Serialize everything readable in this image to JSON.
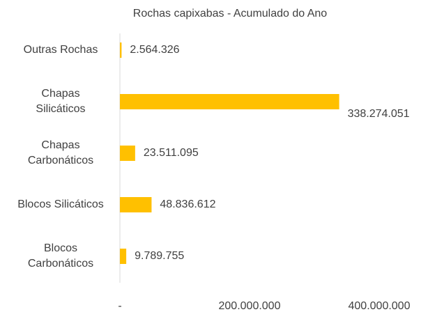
{
  "chart_data": {
    "type": "barh",
    "title": "Rochas capixabas - Acumulado do Ano",
    "categories": [
      "Outras Rochas",
      "Chapas\nSilicáticos",
      "Chapas\nCarbonáticos",
      "Blocos Silicáticos",
      "Blocos\nCarbonáticos"
    ],
    "values": [
      2564326,
      338274051,
      23511095,
      48836612,
      9789755
    ],
    "value_labels": [
      "2.564.326",
      "338.274.051",
      "23.511.095",
      "48.836.612",
      "9.789.755"
    ],
    "color": "#ffc000",
    "xlim": [
      0,
      400000000
    ],
    "xticks": [
      {
        "value": 0,
        "label": "-"
      },
      {
        "value": 200000000,
        "label": "200.000.000"
      },
      {
        "value": 400000000,
        "label": "400.000.000"
      }
    ]
  }
}
